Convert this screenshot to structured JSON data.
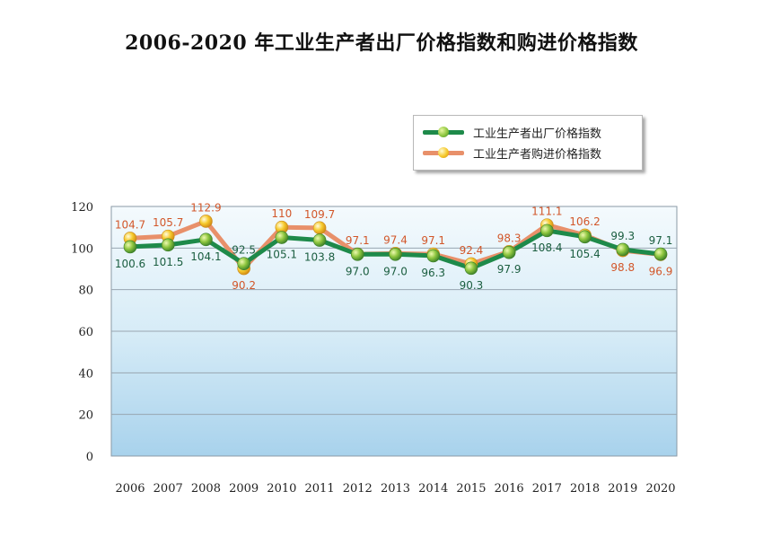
{
  "title": "2006-2020 年工业生产者出厂价格指数和购进价格指数",
  "chart_data": {
    "type": "line",
    "categories": [
      "2006",
      "2007",
      "2008",
      "2009",
      "2010",
      "2011",
      "2012",
      "2013",
      "2014",
      "2015",
      "2016",
      "2017",
      "2018",
      "2019",
      "2020"
    ],
    "series": [
      {
        "name": "工业生产者出厂价格指数",
        "color": "#1e8a4a",
        "values": [
          100.6,
          101.5,
          104.1,
          92.5,
          105.1,
          103.8,
          97.0,
          97.0,
          96.3,
          90.3,
          97.9,
          108.4,
          105.4,
          99.3,
          97.1
        ],
        "labels": [
          "100.6",
          "101.5",
          "104.1",
          "92.5",
          "105.1",
          "103.8",
          "97.0",
          "97.0",
          "96.3",
          "90.3",
          "97.9",
          "108.4",
          "105.4",
          "99.3",
          "97.1"
        ]
      },
      {
        "name": "工业生产者购进价格指数",
        "color": "#e8906a",
        "values": [
          104.7,
          105.7,
          112.9,
          90.2,
          110,
          109.7,
          97.1,
          97.4,
          97.1,
          92.4,
          98.3,
          111.1,
          106.2,
          98.8,
          96.9
        ],
        "labels": [
          "104.7",
          "105.7",
          "112.9",
          "90.2",
          "110",
          "109.7",
          "97.1",
          "97.4",
          "97.1",
          "92.4",
          "98.3",
          "111.1",
          "106.2",
          "98.8",
          "96.9"
        ]
      }
    ],
    "yticks": [
      "0",
      "20",
      "40",
      "60",
      "80",
      "100",
      "120"
    ],
    "ylim": [
      0,
      120
    ],
    "grid": true,
    "legend_position": "top-right"
  }
}
